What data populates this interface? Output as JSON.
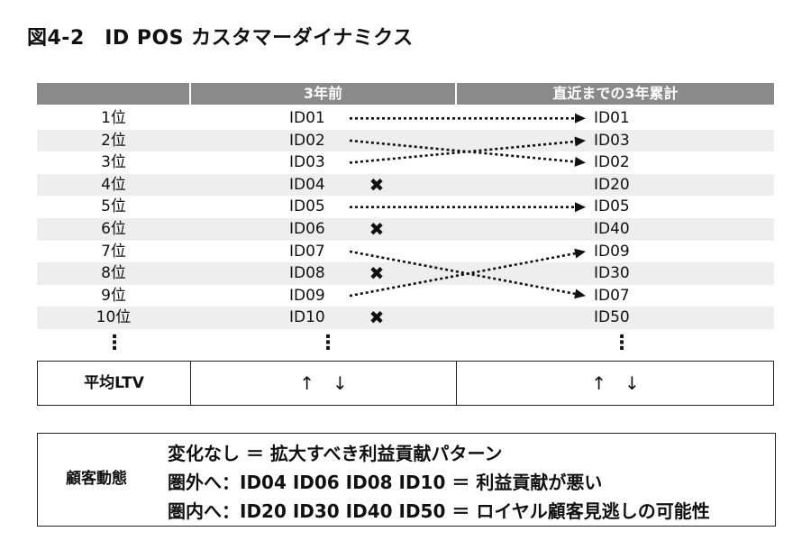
{
  "title": "図4-2　ID POS カスタマーダイナミクス",
  "table": {
    "headers": [
      "",
      "3年前",
      "直近までの3年累計"
    ],
    "rows": [
      {
        "rank": "1位",
        "prev": "ID01",
        "curr": "ID01",
        "dropped": false
      },
      {
        "rank": "2位",
        "prev": "ID02",
        "curr": "ID03",
        "dropped": false
      },
      {
        "rank": "3位",
        "prev": "ID03",
        "curr": "ID02",
        "dropped": false
      },
      {
        "rank": "4位",
        "prev": "ID04",
        "curr": "ID20",
        "dropped": true
      },
      {
        "rank": "5位",
        "prev": "ID05",
        "curr": "ID05",
        "dropped": false
      },
      {
        "rank": "6位",
        "prev": "ID06",
        "curr": "ID40",
        "dropped": true
      },
      {
        "rank": "7位",
        "prev": "ID07",
        "curr": "ID09",
        "dropped": false
      },
      {
        "rank": "8位",
        "prev": "ID08",
        "curr": "ID30",
        "dropped": true
      },
      {
        "rank": "9位",
        "prev": "ID09",
        "curr": "ID07",
        "dropped": false
      },
      {
        "rank": "10位",
        "prev": "ID10",
        "curr": "ID50",
        "dropped": true
      }
    ],
    "ellipsis": "⋮",
    "drop_mark": "✖",
    "arrow_color": "#111111"
  },
  "links": [
    {
      "from": "ID01",
      "to": "ID01"
    },
    {
      "from": "ID02",
      "to": "ID02"
    },
    {
      "from": "ID03",
      "to": "ID03"
    },
    {
      "from": "ID05",
      "to": "ID05"
    },
    {
      "from": "ID07",
      "to": "ID07"
    },
    {
      "from": "ID09",
      "to": "ID09"
    }
  ],
  "ltv": {
    "label": "平均LTV",
    "prev_arrows": "↑　↓",
    "curr_arrows": "↑　↓"
  },
  "dynamics": {
    "label": "顧客動態",
    "lines": [
      "変化なし ＝ 拡大すべき利益貢献パターン",
      "圏外へ：ID04  ID06  ID08  ID10 ＝ 利益貢献が悪い",
      "圏内へ：ID20  ID30  ID40  ID50 ＝ ロイヤル顧客見逃しの可能性"
    ]
  },
  "colors": {
    "header_bg": "#8a8a8a",
    "row_shade": "#eeeeee"
  }
}
